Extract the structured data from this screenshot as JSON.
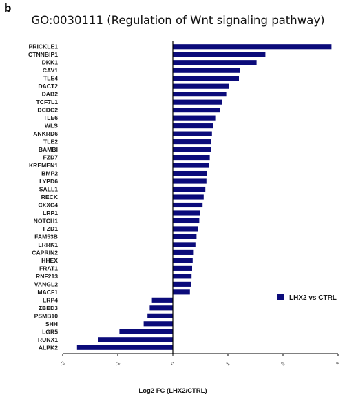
{
  "panel_letter": "b",
  "chart_data": {
    "type": "bar",
    "orientation": "horizontal",
    "title": "GO:0030111 (Regulation of Wnt signaling pathway)",
    "xlabel": "Log2 FC (LHX2/CTRL)",
    "ylabel": "",
    "xlim": [
      -2,
      3
    ],
    "xticks": [
      "-2",
      "-1",
      "0",
      "1",
      "2",
      "3"
    ],
    "tick_values": [
      -2,
      -1,
      0,
      1,
      2,
      3
    ],
    "color": "#0b0b7a",
    "legend": "LHX2 vs CTRL",
    "legend_position": "right",
    "grid": false,
    "categories": [
      "PRICKLE1",
      "CTNNBIP1",
      "DKK1",
      "CAV1",
      "TLE4",
      "DACT2",
      "DAB2",
      "TCF7L1",
      "DCDC2",
      "TLE6",
      "WLS",
      "ANKRD6",
      "TLE2",
      "BAMBI",
      "FZD7",
      "KREMEN1",
      "BMP2",
      "LYPD6",
      "SALL1",
      "RECK",
      "CXXC4",
      "LRP1",
      "NOTCH1",
      "FZD1",
      "FAM53B",
      "LRRK1",
      "CAPRIN2",
      "HHEX",
      "FRAT1",
      "RNF213",
      "VANGL2",
      "MACF1",
      "LRP4",
      "ZBED3",
      "PSMB10",
      "SHH",
      "LGR5",
      "RUNX1",
      "ALPK2"
    ],
    "values": [
      2.88,
      1.68,
      1.52,
      1.22,
      1.2,
      1.02,
      0.97,
      0.9,
      0.85,
      0.77,
      0.73,
      0.71,
      0.7,
      0.69,
      0.67,
      0.65,
      0.62,
      0.61,
      0.59,
      0.56,
      0.54,
      0.5,
      0.48,
      0.46,
      0.43,
      0.41,
      0.38,
      0.36,
      0.35,
      0.34,
      0.33,
      0.31,
      -0.38,
      -0.42,
      -0.46,
      -0.53,
      -0.97,
      -1.36,
      -1.74
    ]
  }
}
